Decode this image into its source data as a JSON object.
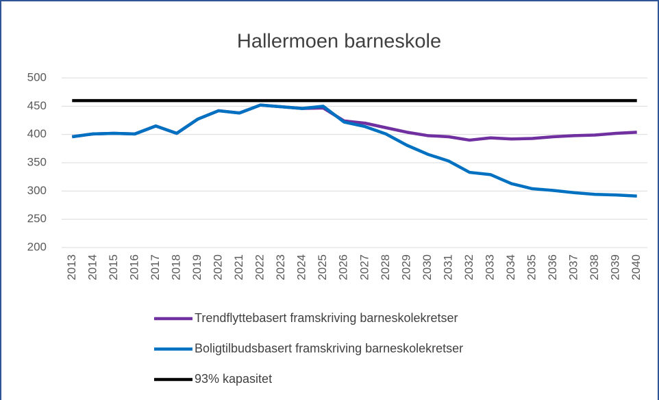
{
  "chart_data": {
    "type": "line",
    "title": "Hallermoen barneskole",
    "categories": [
      "2013",
      "2014",
      "2015",
      "2016",
      "2017",
      "2018",
      "2019",
      "2020",
      "2021",
      "2022",
      "2023",
      "2024",
      "2025",
      "2026",
      "2027",
      "2028",
      "2029",
      "2030",
      "2031",
      "2032",
      "2033",
      "2034",
      "2035",
      "2036",
      "2037",
      "2038",
      "2039",
      "2040"
    ],
    "series": [
      {
        "name": "Trendflyttebasert framskriving barneskolekretser",
        "color": "#7030a0",
        "values": [
          396,
          401,
          402,
          401,
          415,
          402,
          427,
          442,
          438,
          452,
          449,
          446,
          447,
          424,
          420,
          412,
          404,
          398,
          396,
          390,
          394,
          392,
          393,
          396,
          398,
          399,
          402,
          404
        ]
      },
      {
        "name": "Boligtilbudsbasert framskriving barneskolekretser",
        "color": "#0070c0",
        "values": [
          396,
          401,
          402,
          401,
          415,
          402,
          427,
          442,
          438,
          452,
          449,
          446,
          450,
          422,
          414,
          401,
          381,
          365,
          353,
          333,
          329,
          313,
          304,
          301,
          297,
          294,
          293,
          291
        ]
      },
      {
        "name": "93% kapasitet",
        "color": "#000000",
        "values": [
          460,
          460,
          460,
          460,
          460,
          460,
          460,
          460,
          460,
          460,
          460,
          460,
          460,
          460,
          460,
          460,
          460,
          460,
          460,
          460,
          460,
          460,
          460,
          460,
          460,
          460,
          460,
          460
        ]
      }
    ],
    "ylim": [
      200,
      500
    ],
    "yticks": [
      200,
      250,
      300,
      350,
      400,
      450,
      500
    ],
    "grid": true
  }
}
